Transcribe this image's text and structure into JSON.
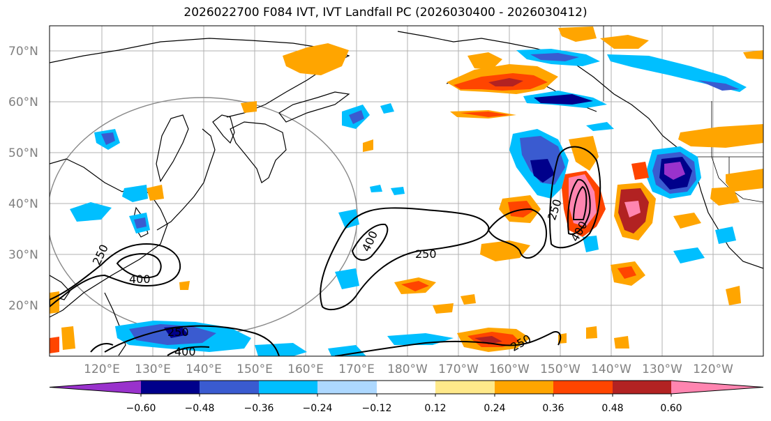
{
  "title": "2026022700 F084 IVT, IVT Landfall PC (2026030400 - 2026030412)",
  "map": {
    "lat_labels": [
      "70°N",
      "60°N",
      "50°N",
      "40°N",
      "30°N",
      "20°N"
    ],
    "lon_labels": [
      "120°E",
      "130°E",
      "140°E",
      "150°E",
      "160°E",
      "170°E",
      "180°W",
      "170°W",
      "160°W",
      "150°W",
      "140°W",
      "130°W",
      "120°W"
    ],
    "contour_labels": [
      "250",
      "400",
      "250",
      "400",
      "250",
      "400",
      "250",
      "250",
      "400"
    ]
  },
  "colorbar": {
    "colors": [
      "#9932CC",
      "#00008B",
      "#3A5BD0",
      "#00BFFF",
      "#ADD8FF",
      "#FFFFFF",
      "#FFE98A",
      "#FFA500",
      "#FF4500",
      "#B22222",
      "#FF85B0"
    ],
    "tick_labels": [
      "−0.60",
      "−0.48",
      "−0.36",
      "−0.24",
      "−0.12",
      "0.12",
      "0.24",
      "0.36",
      "0.48",
      "0.60"
    ]
  }
}
